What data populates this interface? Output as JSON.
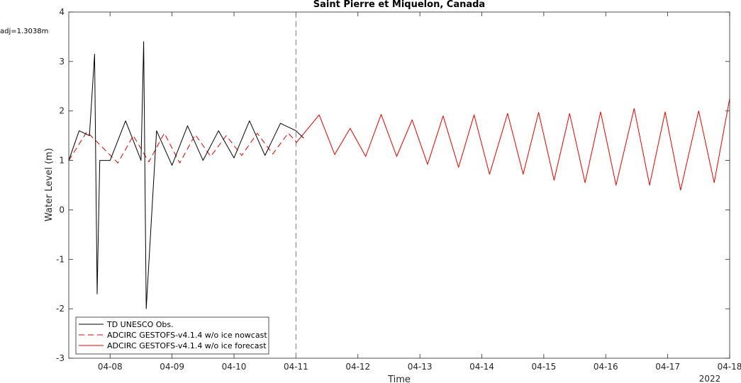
{
  "chart_data": {
    "type": "line",
    "title": "Saint Pierre et Miquelon, Canada",
    "xlabel": "Time",
    "ylabel": "Water Level (m)",
    "annotation": "adj=1.3038m",
    "year_label": "2022",
    "xlim": [
      "2022-04-07 08:00",
      "2022-04-18 00:00"
    ],
    "ylim": [
      -3,
      4
    ],
    "yticks": [
      -3,
      -2,
      -1,
      0,
      1,
      2,
      3,
      4
    ],
    "xticks": [
      "04-08",
      "04-09",
      "04-10",
      "04-11",
      "04-12",
      "04-13",
      "04-14",
      "04-15",
      "04-16",
      "04-17",
      "04-18"
    ],
    "nowcast_forecast_boundary": "2022-04-11 00:00",
    "grid": false,
    "legend_position": "bottom-left",
    "series": [
      {
        "name": "TD UNESCO Obs.",
        "color": "#000000",
        "style": "solid",
        "x": [
          "2022-04-07 08:00",
          "2022-04-07 12:00",
          "2022-04-07 16:00",
          "2022-04-07 18:00",
          "2022-04-07 19:00",
          "2022-04-07 20:00",
          "2022-04-08 00:00",
          "2022-04-08 06:00",
          "2022-04-08 12:00",
          "2022-04-08 13:00",
          "2022-04-08 14:00",
          "2022-04-08 18:00",
          "2022-04-09 00:00",
          "2022-04-09 06:00",
          "2022-04-09 12:00",
          "2022-04-09 18:00",
          "2022-04-10 00:00",
          "2022-04-10 06:00",
          "2022-04-10 12:00",
          "2022-04-10 18:00",
          "2022-04-11 00:00",
          "2022-04-11 03:00"
        ],
        "values": [
          1.0,
          1.6,
          1.5,
          3.15,
          -1.7,
          1.0,
          1.0,
          1.8,
          1.0,
          3.4,
          -2.0,
          1.6,
          0.9,
          1.7,
          1.0,
          1.6,
          1.05,
          1.8,
          1.1,
          1.75,
          1.6,
          1.45
        ]
      },
      {
        "name": "ADCIRC GESTOFS-v4.1.4 w/o ice nowcast",
        "color": "#e60000",
        "style": "dashed",
        "x": [
          "2022-04-07 08:00",
          "2022-04-07 15:00",
          "2022-04-08 03:00",
          "2022-04-08 09:00",
          "2022-04-08 15:00",
          "2022-04-08 21:00",
          "2022-04-09 03:00",
          "2022-04-09 09:00",
          "2022-04-09 15:00",
          "2022-04-09 21:00",
          "2022-04-10 03:00",
          "2022-04-10 09:00",
          "2022-04-10 15:00",
          "2022-04-10 21:00",
          "2022-04-11 00:00"
        ],
        "values": [
          1.0,
          1.58,
          0.95,
          1.5,
          0.97,
          1.55,
          0.95,
          1.52,
          1.08,
          1.5,
          1.1,
          1.55,
          1.13,
          1.55,
          1.38
        ]
      },
      {
        "name": "ADCIRC GESTOFS-v4.1.4 w/o ice forecast",
        "color": "#e60000",
        "style": "solid",
        "x": [
          "2022-04-11 00:00",
          "2022-04-11 09:00",
          "2022-04-11 15:00",
          "2022-04-11 21:00",
          "2022-04-12 03:00",
          "2022-04-12 09:00",
          "2022-04-12 15:00",
          "2022-04-12 21:00",
          "2022-04-13 03:00",
          "2022-04-13 09:00",
          "2022-04-13 15:00",
          "2022-04-13 21:00",
          "2022-04-14 03:00",
          "2022-04-14 10:00",
          "2022-04-14 16:00",
          "2022-04-14 22:00",
          "2022-04-15 04:00",
          "2022-04-15 10:00",
          "2022-04-15 16:00",
          "2022-04-15 22:00",
          "2022-04-16 04:00",
          "2022-04-16 11:00",
          "2022-04-16 17:00",
          "2022-04-16 23:00",
          "2022-04-17 05:00",
          "2022-04-17 12:00",
          "2022-04-17 18:00",
          "2022-04-18 00:00"
        ],
        "values": [
          1.35,
          1.92,
          1.12,
          1.65,
          1.08,
          1.93,
          1.08,
          1.82,
          0.92,
          1.9,
          0.86,
          1.92,
          0.72,
          1.95,
          0.72,
          1.97,
          0.6,
          1.95,
          0.55,
          1.98,
          0.5,
          2.05,
          0.5,
          1.98,
          0.4,
          2.0,
          0.55,
          2.25
        ]
      }
    ]
  }
}
